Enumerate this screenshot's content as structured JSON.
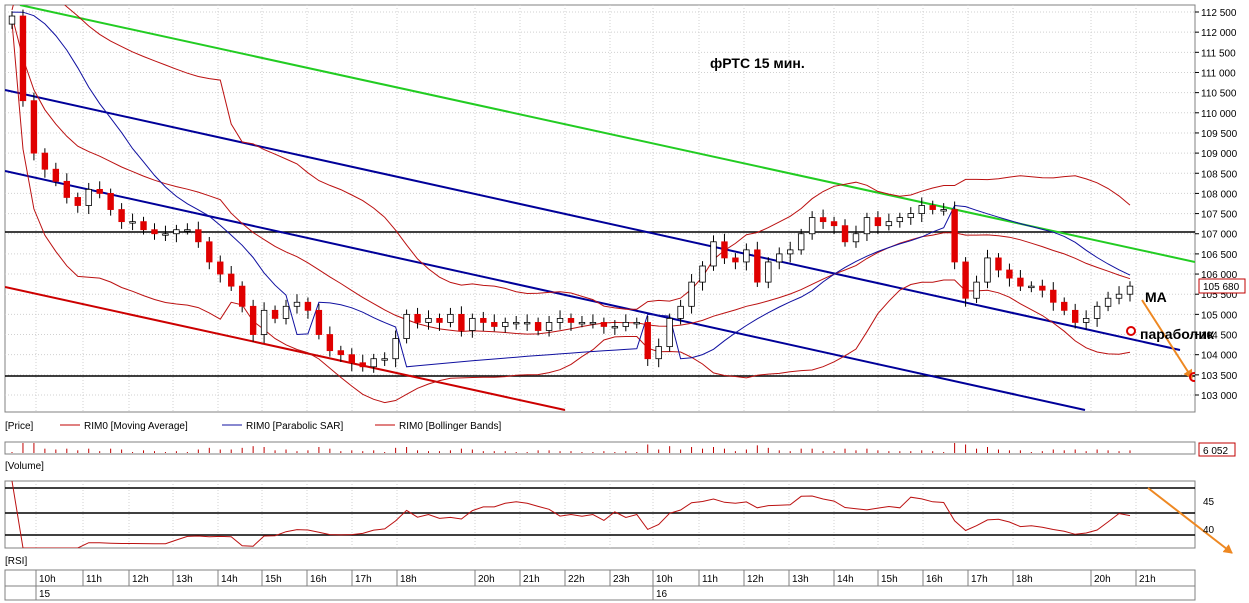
{
  "annotations": {
    "title": "фРТС    15 мин.",
    "ma_label": "MA",
    "sar_label": "параболик"
  },
  "legend": {
    "price": "[Price]",
    "items": [
      {
        "label": "RIM0 [Moving Average]",
        "color": "#c00000"
      },
      {
        "label": "RIM0 [Parabolic SAR]",
        "color": "#1010a0"
      },
      {
        "label": "RIM0 [Bollinger Bands]",
        "color": "#c00000"
      }
    ],
    "volume": "[Volume]",
    "rsi": "[RSI]"
  },
  "price_badge": "105 680",
  "volume_badge": "6 052",
  "colors": {
    "candle": "#e00000",
    "green_line": "#22cc22",
    "blue_line": "#000099",
    "red_line": "#cc0000",
    "arrow": "#ee8822",
    "grid": "#c8c8c8"
  },
  "time_axis": {
    "hours": [
      "10h",
      "11h",
      "12h",
      "13h",
      "14h",
      "15h",
      "16h",
      "17h",
      "18h",
      "20h",
      "21h",
      "22h",
      "23h",
      "10h",
      "11h",
      "12h",
      "13h",
      "14h",
      "15h",
      "16h",
      "17h",
      "18h",
      "20h",
      "21h"
    ],
    "days": [
      "15",
      "16"
    ]
  },
  "chart_data": {
    "type": "candlestick",
    "y_axis": {
      "ticks": [
        "112 500",
        "112 000",
        "111 500",
        "111 000",
        "110 500",
        "110 000",
        "109 500",
        "109 000",
        "108 500",
        "108 000",
        "107 500",
        "107 000",
        "106 500",
        "106 000",
        "105 500",
        "105 000",
        "104 500",
        "104 000",
        "103 500",
        "103 000"
      ],
      "range": [
        102800,
        112600
      ]
    },
    "candles_close": [
      112400,
      110300,
      109000,
      108600,
      108300,
      107900,
      107700,
      108100,
      108000,
      107600,
      107300,
      107300,
      107100,
      107000,
      107000,
      107100,
      107100,
      106800,
      106300,
      106000,
      105700,
      105200,
      104500,
      105100,
      104900,
      105200,
      105300,
      105100,
      104500,
      104100,
      104000,
      103800,
      103700,
      103900,
      103900,
      104400,
      105000,
      104800,
      104900,
      104800,
      105000,
      104600,
      104900,
      104800,
      104700,
      104800,
      104800,
      104800,
      104600,
      104800,
      104900,
      104800,
      104800,
      104800,
      104700,
      104700,
      104800,
      104800,
      103900,
      104200,
      104900,
      105200,
      105800,
      106200,
      106800,
      106400,
      106300,
      106600,
      105800,
      106300,
      106500,
      106600,
      107000,
      107400,
      107300,
      107200,
      106800,
      107000,
      107400,
      107200,
      107300,
      107400,
      107500,
      107700,
      107600,
      107600,
      106300,
      105400,
      105800,
      106400,
      106100,
      105900,
      105700,
      105700,
      105600,
      105300,
      105100,
      104800,
      104900,
      105200,
      105400,
      105500,
      105700
    ]
  },
  "rsi_levels": [
    "45",
    "40"
  ]
}
